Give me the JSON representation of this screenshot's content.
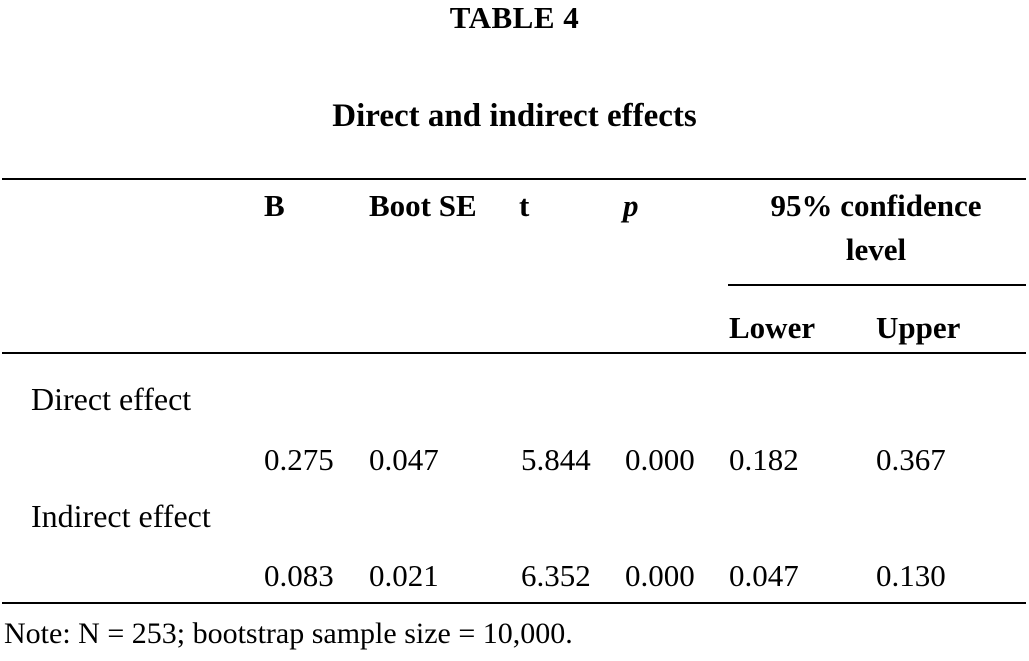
{
  "table": {
    "label": "TABLE 4",
    "title": "Direct and indirect effects",
    "headers": {
      "b": "B",
      "boot_se": "Boot SE",
      "t": "t",
      "p": "p",
      "ci_line1": "95% confidence",
      "ci_line2": "level",
      "lower": "Lower",
      "upper": "Upper"
    },
    "rows": [
      {
        "label": "Direct effect",
        "b": "0.275",
        "boot_se": "0.047",
        "t": "5.844",
        "p": "0.000",
        "lower": "0.182",
        "upper": "0.367"
      },
      {
        "label": "Indirect effect",
        "b": "0.083",
        "boot_se": "0.021",
        "t": "6.352",
        "p": "0.000",
        "lower": "0.047",
        "upper": "0.130"
      }
    ],
    "note": "Note: N = 253; bootstrap sample size = 10,000."
  }
}
